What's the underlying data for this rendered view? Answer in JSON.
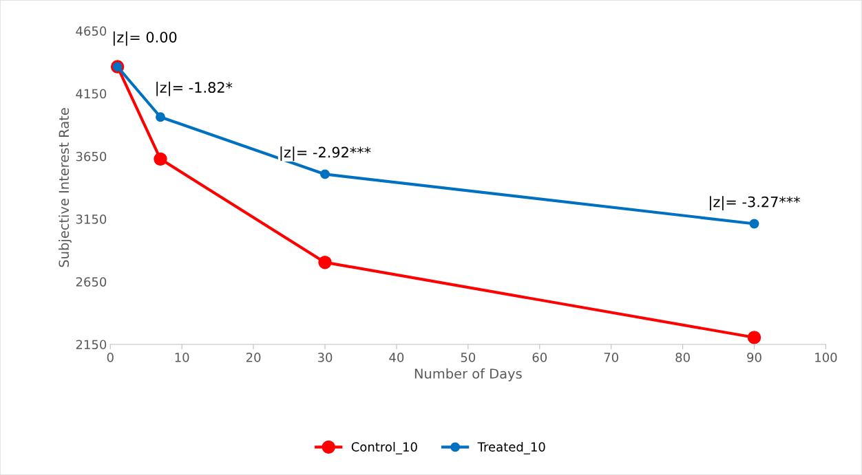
{
  "chart_data": {
    "type": "line",
    "xlabel": "Number of Days",
    "ylabel": "Subjective Interest Rate",
    "series": [
      {
        "name": "Control_10",
        "color": "#ff0000",
        "x": [
          1,
          7,
          30,
          90
        ],
        "values": [
          4364,
          3628,
          2804,
          2205
        ]
      },
      {
        "name": "Treated_10",
        "color": "#0070c0",
        "x": [
          1,
          7,
          30,
          90
        ],
        "values": [
          4364,
          3963,
          3507,
          3112
        ]
      }
    ],
    "annotations": [
      {
        "text": "|z|= 0.00",
        "x": 1,
        "y": 4364
      },
      {
        "text": "|z|= -1.82*",
        "x": 7,
        "y": 3963
      },
      {
        "text": "|z|= -2.92***",
        "x": 30,
        "y": 3507
      },
      {
        "text": "|z|= -3.27***",
        "x": 90,
        "y": 3112
      }
    ],
    "xlim": [
      0,
      100
    ],
    "xticks": [
      0,
      10,
      20,
      30,
      40,
      50,
      60,
      70,
      80,
      90,
      100
    ],
    "ylim": [
      2150,
      4650
    ],
    "yticks": [
      2150,
      2650,
      3150,
      3650,
      4150,
      4650
    ],
    "grid": false,
    "legend": "bottom",
    "marker": "circle",
    "line_style": "solid"
  }
}
